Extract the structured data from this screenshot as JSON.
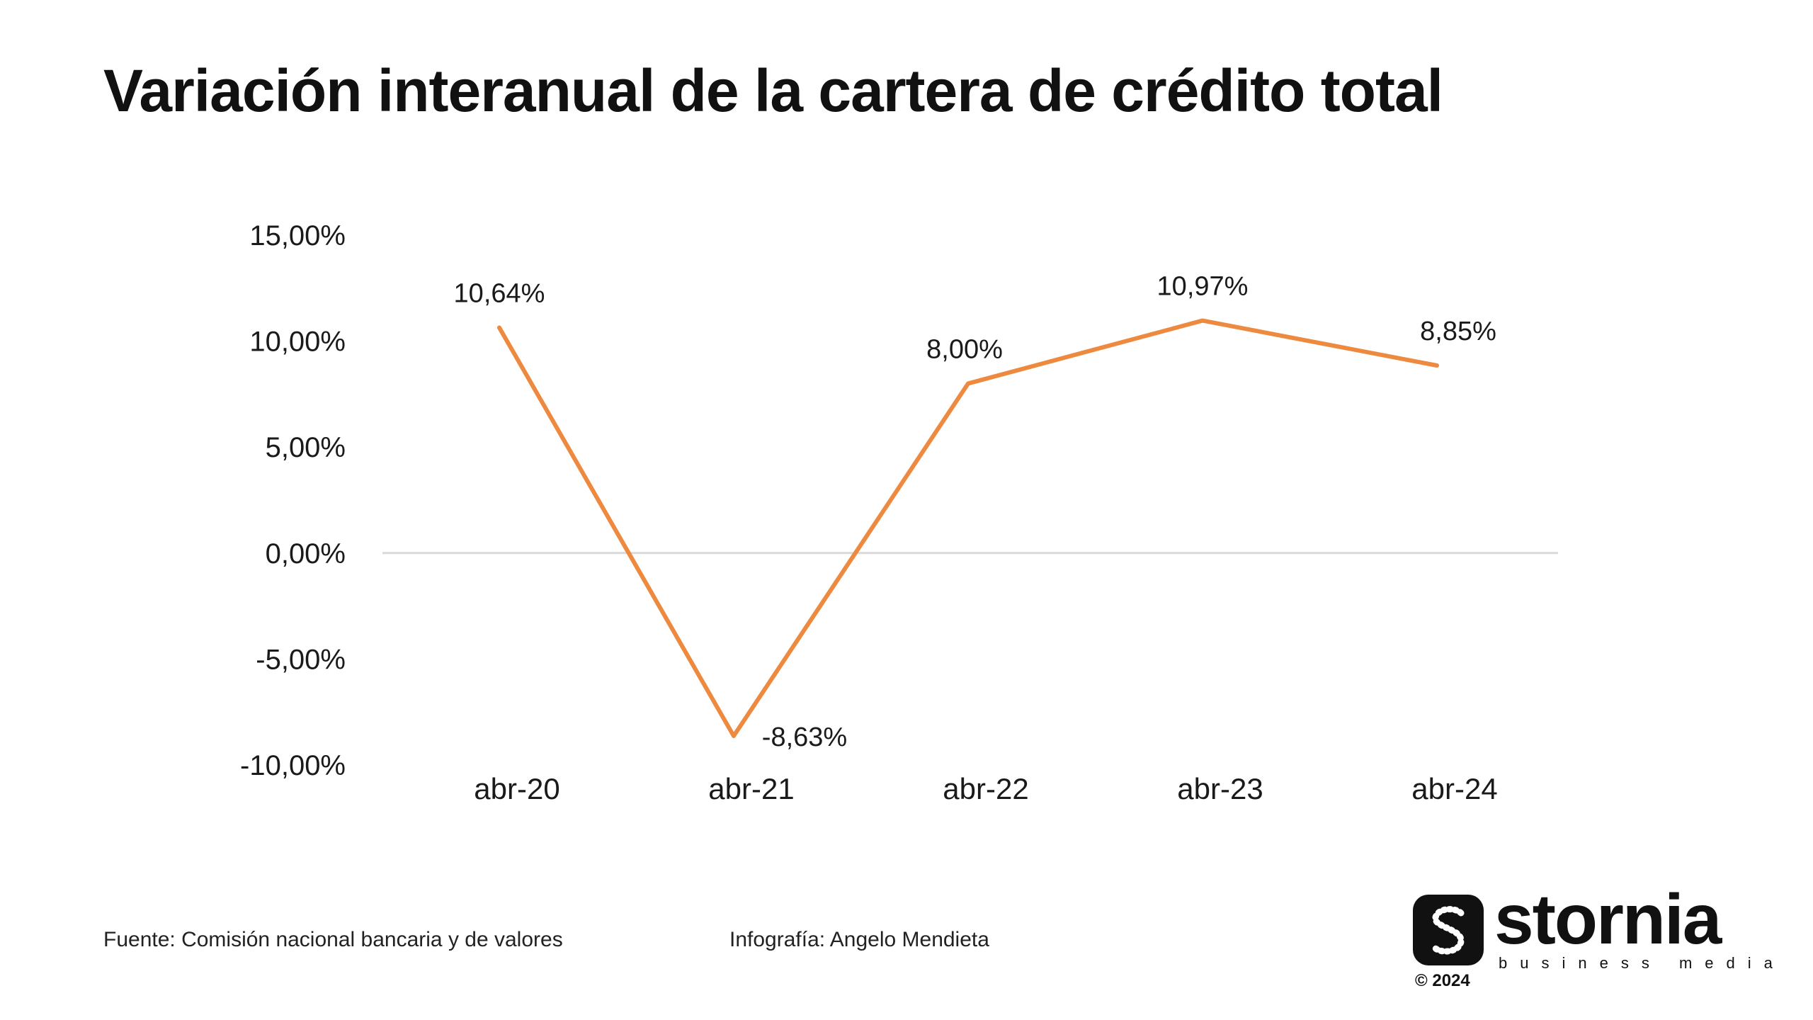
{
  "header": {
    "title": "Variación interanual de la cartera de crédito total"
  },
  "chart_data": {
    "type": "line",
    "title": "Variación interanual de la cartera de crédito total",
    "xlabel": "",
    "ylabel": "",
    "categories": [
      "abr-20",
      "abr-21",
      "abr-22",
      "abr-23",
      "abr-24"
    ],
    "values": [
      10.64,
      -8.63,
      8.0,
      10.97,
      8.85
    ],
    "data_labels": [
      "10,64%",
      "-8,63%",
      "8,00%",
      "10,97%",
      "8,85%"
    ],
    "ylim": [
      -10,
      15
    ],
    "yticks": [
      15,
      10,
      5,
      0,
      -5,
      -10
    ],
    "ytick_labels": [
      "15,00%",
      "10,00%",
      "5,00%",
      "0,00%",
      "-5,00%",
      "-10,00%"
    ],
    "grid": false,
    "line_color": "#ED8A40",
    "zero_line_color": "#d9d9d9"
  },
  "footer": {
    "source": "Fuente: Comisión nacional bancaria y de valores",
    "credit": "Infografía: Angelo Mendieta"
  },
  "logo": {
    "wordmark": "stornia",
    "subtitle": "business media",
    "copyright": "© 2024",
    "icon": "stornia-s-logo-icon"
  }
}
